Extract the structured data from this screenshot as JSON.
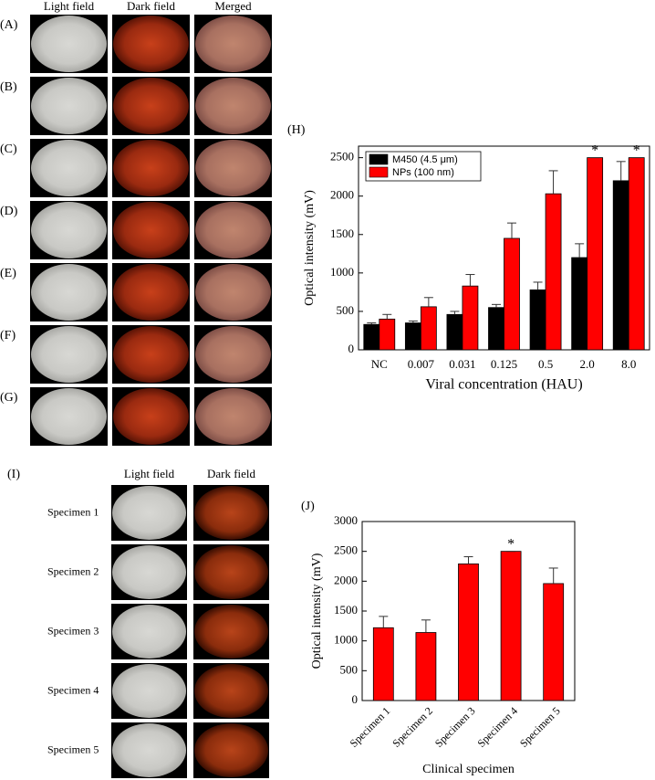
{
  "panels": {
    "top": {
      "labels": [
        "(A)",
        "(B)",
        "(C)",
        "(D)",
        "(E)",
        "(F)",
        "(G)"
      ],
      "columns": [
        "Light field",
        "Dark field",
        "Merged"
      ]
    },
    "bottom": {
      "label": "(I)",
      "columns": [
        "Light field",
        "Dark field"
      ],
      "rows": [
        "Specimen 1",
        "Specimen 2",
        "Specimen 3",
        "Specimen 4",
        "Specimen 5"
      ]
    }
  },
  "chart_data": [
    {
      "type": "bar",
      "panel": "(H)",
      "x_label": "Viral concentration (HAU)",
      "y_label": "Optical intensity (mV)",
      "categories": [
        "NC",
        "0.007",
        "0.031",
        "0.125",
        "0.5",
        "2.0",
        "8.0"
      ],
      "series": [
        {
          "name": "M450 (4.5 μm)",
          "color": "#000000",
          "values": [
            330,
            350,
            460,
            550,
            780,
            1200,
            2200
          ],
          "errors": [
            20,
            25,
            40,
            40,
            100,
            180,
            250
          ]
        },
        {
          "name": "NPs (100 nm)",
          "color": "#ff0000",
          "values": [
            400,
            560,
            830,
            1450,
            2030,
            2500,
            2500
          ],
          "errors": [
            60,
            120,
            150,
            200,
            300,
            0,
            0
          ],
          "significance": [
            null,
            null,
            null,
            null,
            null,
            "*",
            "*"
          ]
        }
      ],
      "ylim": [
        0,
        2650
      ],
      "yticks": [
        0,
        500,
        1000,
        1500,
        2000,
        2500
      ],
      "legend": "upper-left"
    },
    {
      "type": "bar",
      "panel": "(J)",
      "x_label": "Clinical specimen",
      "y_label": "Optical intensity (mV)",
      "categories": [
        "Specimen 1",
        "Specimen 2",
        "Specimen 3",
        "Specimen 4",
        "Specimen 5"
      ],
      "series": [
        {
          "color": "#ff0000",
          "values": [
            1220,
            1140,
            2290,
            2500,
            1960
          ],
          "errors": [
            190,
            210,
            120,
            0,
            260
          ],
          "significance": [
            null,
            null,
            null,
            "*",
            null
          ]
        }
      ],
      "ylim": [
        0,
        3000
      ],
      "yticks": [
        0,
        500,
        1000,
        1500,
        2000,
        2500,
        3000
      ]
    }
  ]
}
